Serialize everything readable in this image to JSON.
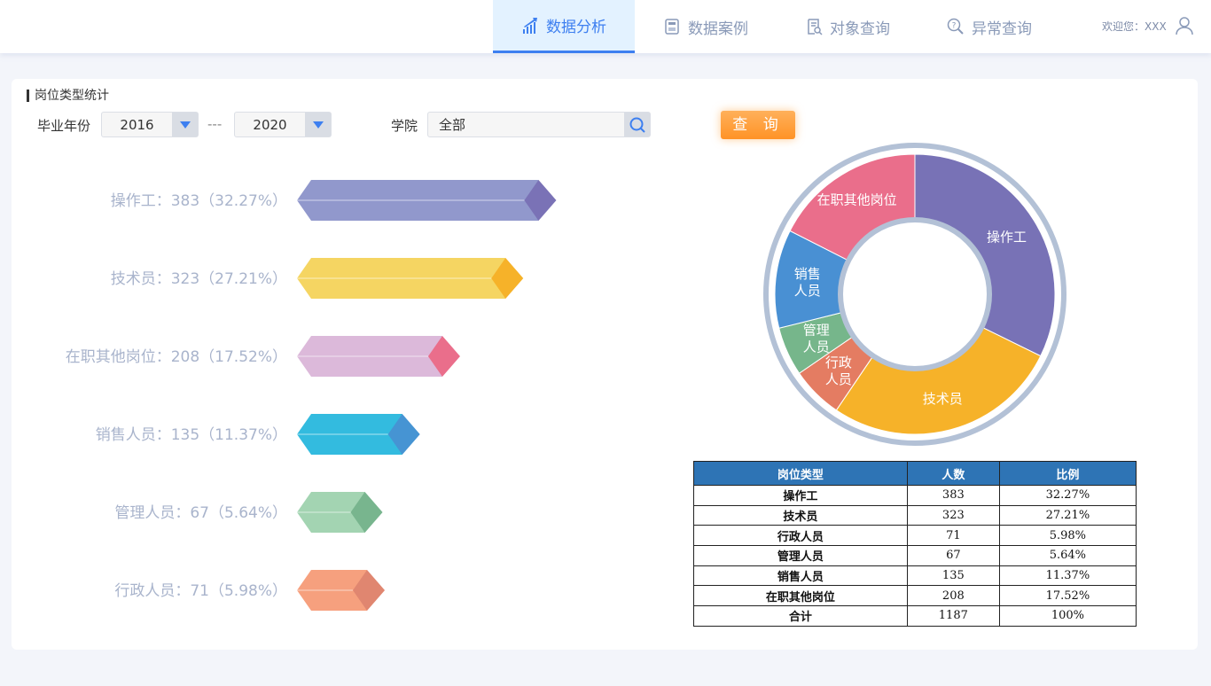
{
  "nav": {
    "items": [
      {
        "label": "数据分析",
        "icon": "chart-icon",
        "active": true
      },
      {
        "label": "数据案例",
        "icon": "calculator-icon"
      },
      {
        "label": "对象查询",
        "icon": "document-search-icon"
      },
      {
        "label": "异常查询",
        "icon": "question-search-icon"
      }
    ],
    "welcome": "欢迎您：XXX"
  },
  "panel": {
    "title": "岗位类型统计",
    "year_label": "毕业年份",
    "year_from": "2016",
    "year_sep": "---",
    "year_to": "2020",
    "college_label": "学院",
    "college_value": "全部",
    "query_button": "查 询"
  },
  "colors": {
    "accent": "#3d7ff0",
    "button": "#ff9a30",
    "table_header": "#2e74b5"
  },
  "chart_data": [
    {
      "type": "bar",
      "orientation": "horizontal",
      "style": "3d-prism",
      "categories": [
        "操作工",
        "技术员",
        "在职其他岗位",
        "销售人员",
        "管理人员",
        "行政人员"
      ],
      "values": [
        383,
        323,
        208,
        135,
        67,
        71
      ],
      "percents": [
        "32.27%",
        "27.21%",
        "17.52%",
        "11.37%",
        "5.64%",
        "5.98%"
      ],
      "labels": [
        "操作工：383（32.27%）",
        "技术员：323（27.21%）",
        "在职其他岗位：208（17.52%）",
        "销售人员：135（11.37%）",
        "管理人员：67（5.64%）",
        "行政人员：71（5.98%）"
      ],
      "colors": [
        [
          "#9198cc",
          "#7a72b6"
        ],
        [
          "#f5d562",
          "#f6b229"
        ],
        [
          "#dcb9da",
          "#ea6e8b"
        ],
        [
          "#33bbdf",
          "#4694d3"
        ],
        [
          "#a3d4b2",
          "#78b58e"
        ],
        [
          "#f6a07e",
          "#e08670"
        ]
      ]
    },
    {
      "type": "pie",
      "style": "donut",
      "categories": [
        "操作工",
        "技术员",
        "行政人员",
        "管理人员",
        "销售人员",
        "在职其他岗位"
      ],
      "values": [
        383,
        323,
        71,
        67,
        135,
        208
      ],
      "labels": [
        [
          "操作工"
        ],
        [
          "技术员"
        ],
        [
          "行政",
          "人员"
        ],
        [
          "管理",
          "人员"
        ],
        [
          "销售",
          "人员"
        ],
        [
          "在职其他岗位"
        ]
      ],
      "colors": [
        "#7872b6",
        "#f6b229",
        "#e47c62",
        "#76b68b",
        "#4990d3",
        "#ea6e8b"
      ]
    },
    {
      "type": "table",
      "headers": [
        "岗位类型",
        "人数",
        "比例"
      ],
      "rows": [
        [
          "操作工",
          "383",
          "32.27%"
        ],
        [
          "技术员",
          "323",
          "27.21%"
        ],
        [
          "行政人员",
          "71",
          "5.98%"
        ],
        [
          "管理人员",
          "67",
          "5.64%"
        ],
        [
          "销售人员",
          "135",
          "11.37%"
        ],
        [
          "在职其他岗位",
          "208",
          "17.52%"
        ],
        [
          "合计",
          "1187",
          "100%"
        ]
      ]
    }
  ]
}
